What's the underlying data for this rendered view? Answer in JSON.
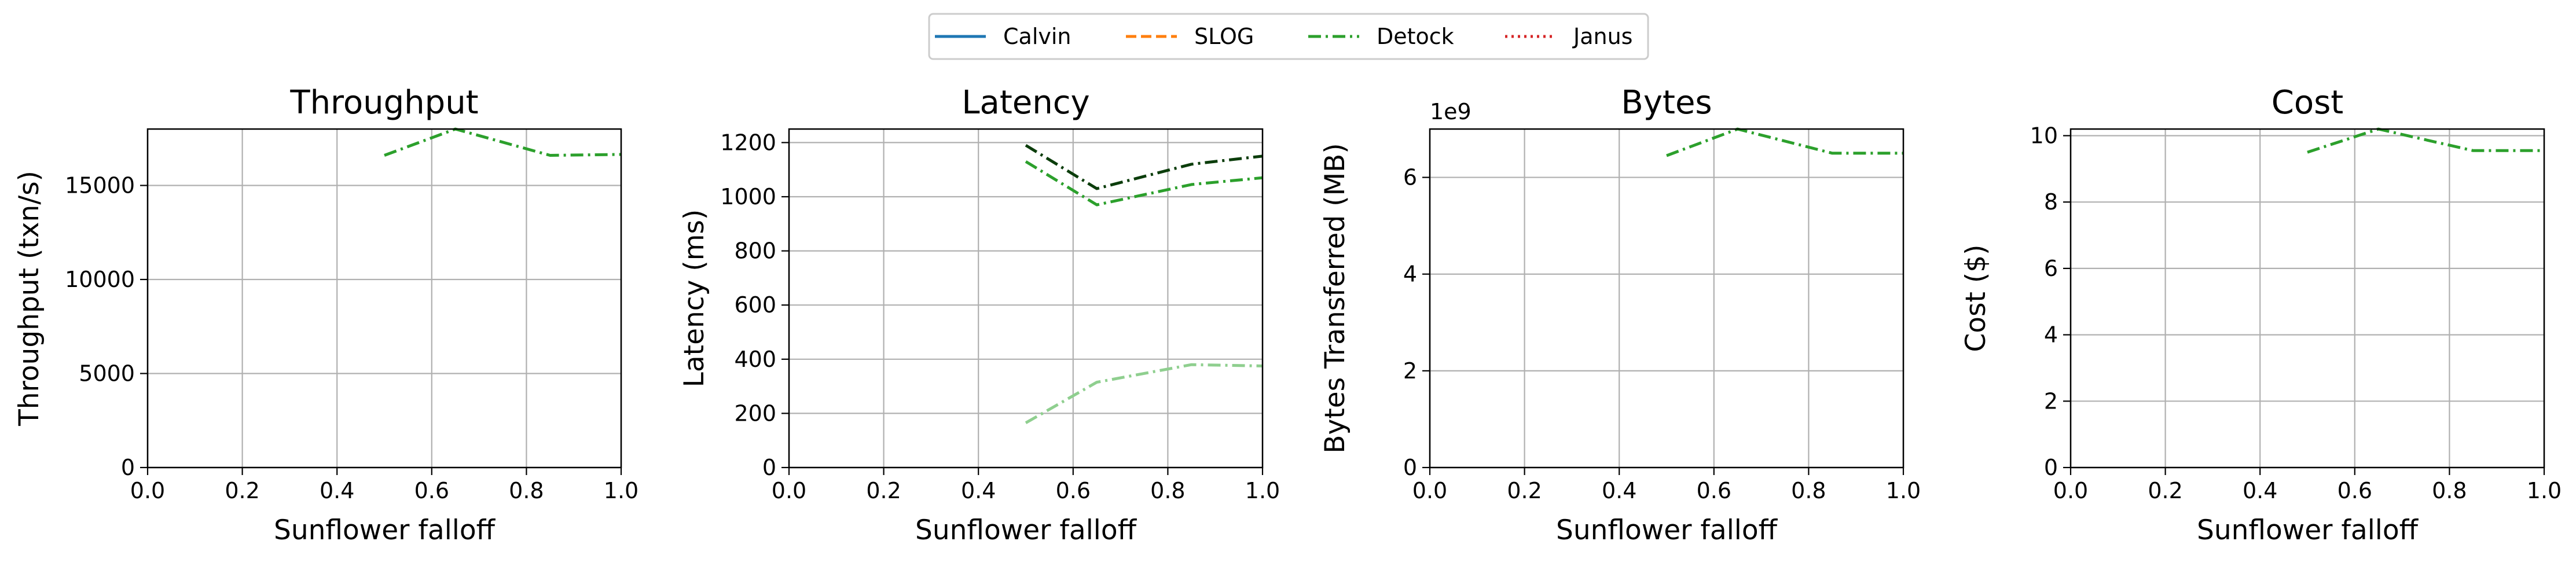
{
  "colors": {
    "Calvin": "#1f77b4",
    "SLOG": "#ff7f0e",
    "Detock": "#2ca02c",
    "Janus": "#d62728",
    "latency_p99": "#0b3d0b",
    "latency_p50": "#8fcf8f"
  },
  "legend": {
    "placement": "top-center",
    "items": [
      {
        "label": "Calvin",
        "style": "solid"
      },
      {
        "label": "SLOG",
        "style": "dashed"
      },
      {
        "label": "Detock",
        "style": "dashdot"
      },
      {
        "label": "Janus",
        "style": "dotted"
      }
    ]
  },
  "chart_data": [
    {
      "type": "line",
      "title": "Throughput",
      "xlabel": "Sunflower falloff",
      "ylabel": "Throughput (txn/s)",
      "xlim": [
        0.0,
        1.0
      ],
      "ylim": [
        0,
        18000
      ],
      "xticks": [
        "0.0",
        "0.2",
        "0.4",
        "0.6",
        "0.8",
        "1.0"
      ],
      "yticks": [
        0,
        5000,
        10000,
        15000
      ],
      "ytick_labels": [
        "0",
        "5000",
        "10000",
        "15000"
      ],
      "offset_label": "",
      "grid": true,
      "series": [
        {
          "name": "Detock",
          "color_key": "Detock",
          "style": "dashdot",
          "x": [
            0.5,
            0.65,
            0.85,
            1.0
          ],
          "y": [
            16600,
            18000,
            16600,
            16650
          ]
        }
      ]
    },
    {
      "type": "line",
      "title": "Latency",
      "xlabel": "Sunflower falloff",
      "ylabel": "Latency (ms)",
      "xlim": [
        0.0,
        1.0
      ],
      "ylim": [
        0,
        1250
      ],
      "xticks": [
        "0.0",
        "0.2",
        "0.4",
        "0.6",
        "0.8",
        "1.0"
      ],
      "yticks": [
        0,
        200,
        400,
        600,
        800,
        1000,
        1200
      ],
      "ytick_labels": [
        "0",
        "200",
        "400",
        "600",
        "800",
        "1000",
        "1200"
      ],
      "offset_label": "",
      "grid": true,
      "series": [
        {
          "color_key": "latency_p99",
          "style": "dashdot",
          "x": [
            0.5,
            0.65,
            0.85,
            1.0
          ],
          "y": [
            1190,
            1030,
            1120,
            1150
          ]
        },
        {
          "color_key": "Detock",
          "style": "dashdot",
          "x": [
            0.5,
            0.65,
            0.85,
            1.0
          ],
          "y": [
            1130,
            970,
            1045,
            1070
          ]
        },
        {
          "color_key": "latency_p50",
          "style": "dashdot",
          "x": [
            0.5,
            0.65,
            0.85,
            1.0
          ],
          "y": [
            165,
            315,
            380,
            375
          ]
        }
      ]
    },
    {
      "type": "line",
      "title": "Bytes",
      "xlabel": "Sunflower falloff",
      "ylabel": "Bytes Transferred (MB)",
      "xlim": [
        0.0,
        1.0
      ],
      "ylim": [
        0,
        7.0
      ],
      "xticks": [
        "0.0",
        "0.2",
        "0.4",
        "0.6",
        "0.8",
        "1.0"
      ],
      "yticks": [
        0,
        2,
        4,
        6
      ],
      "ytick_labels": [
        "0",
        "2",
        "4",
        "6"
      ],
      "offset_label": "1e9",
      "grid": true,
      "series": [
        {
          "name": "Detock",
          "color_key": "Detock",
          "style": "dashdot",
          "x": [
            0.5,
            0.65,
            0.85,
            1.0
          ],
          "y": [
            6.45,
            7.0,
            6.5,
            6.5
          ]
        }
      ]
    },
    {
      "type": "line",
      "title": "Cost",
      "xlabel": "Sunflower falloff",
      "ylabel": "Cost ($)",
      "xlim": [
        0.0,
        1.0
      ],
      "ylim": [
        0,
        10.2
      ],
      "xticks": [
        "0.0",
        "0.2",
        "0.4",
        "0.6",
        "0.8",
        "1.0"
      ],
      "yticks": [
        0,
        2,
        4,
        6,
        8,
        10
      ],
      "ytick_labels": [
        "0",
        "2",
        "4",
        "6",
        "8",
        "10"
      ],
      "offset_label": "",
      "grid": true,
      "series": [
        {
          "name": "Detock",
          "color_key": "Detock",
          "style": "dashdot",
          "x": [
            0.5,
            0.65,
            0.85,
            1.0
          ],
          "y": [
            9.5,
            10.2,
            9.55,
            9.55
          ]
        }
      ]
    }
  ]
}
